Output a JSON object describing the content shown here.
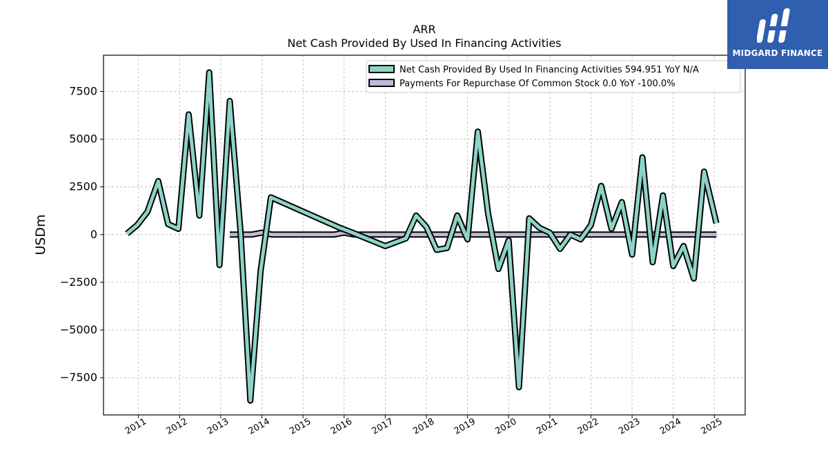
{
  "brand": {
    "name": "MIDGARD FINANCE",
    "icon": "midgard-logo-icon",
    "color": "#2f5fae"
  },
  "chart_data": {
    "type": "line",
    "title": "ARR",
    "subtitle": "Net Cash Provided By Used In Financing Activities",
    "xlabel": "",
    "ylabel": "USDm",
    "xlim": [
      2010.15,
      2025.75
    ],
    "ylim": [
      -9450,
      9400
    ],
    "x_ticks": [
      2011,
      2012,
      2013,
      2014,
      2015,
      2016,
      2017,
      2018,
      2019,
      2020,
      2021,
      2022,
      2023,
      2024,
      2025
    ],
    "y_ticks": [
      -7500,
      -5000,
      -2500,
      0,
      2500,
      5000,
      7500
    ],
    "y_tick_labels": [
      "−7500",
      "−5000",
      "−2500",
      "0",
      "2500",
      "5000",
      "7500"
    ],
    "grid": true,
    "legend_position": "top-right",
    "series": [
      {
        "name": "Net Cash Provided By Used In Financing Activities  594.951 YoY N/A",
        "color": "#8dd3c7",
        "points": [
          [
            2010.72,
            50
          ],
          [
            2010.97,
            500
          ],
          [
            2011.22,
            1200
          ],
          [
            2011.48,
            2800
          ],
          [
            2011.72,
            550
          ],
          [
            2011.97,
            300
          ],
          [
            2012.22,
            6300
          ],
          [
            2012.48,
            1000
          ],
          [
            2012.72,
            8500
          ],
          [
            2012.97,
            -1600
          ],
          [
            2013.22,
            7000
          ],
          [
            2013.48,
            200
          ],
          [
            2013.72,
            -8700
          ],
          [
            2013.97,
            -1900
          ],
          [
            2014.22,
            1950
          ],
          [
            2015.9,
            350
          ],
          [
            2016.2,
            100
          ],
          [
            2017.0,
            -600
          ],
          [
            2017.5,
            -200
          ],
          [
            2017.75,
            1000
          ],
          [
            2018.0,
            400
          ],
          [
            2018.25,
            -800
          ],
          [
            2018.5,
            -700
          ],
          [
            2018.75,
            1000
          ],
          [
            2019.0,
            -250
          ],
          [
            2019.25,
            5400
          ],
          [
            2019.5,
            1100
          ],
          [
            2019.75,
            -1800
          ],
          [
            2020.0,
            -300
          ],
          [
            2020.25,
            -8000
          ],
          [
            2020.5,
            850
          ],
          [
            2020.75,
            350
          ],
          [
            2021.0,
            100
          ],
          [
            2021.25,
            -750
          ],
          [
            2021.5,
            0
          ],
          [
            2021.75,
            -250
          ],
          [
            2022.0,
            500
          ],
          [
            2022.25,
            2550
          ],
          [
            2022.5,
            300
          ],
          [
            2022.75,
            1700
          ],
          [
            2023.0,
            -1050
          ],
          [
            2023.25,
            4050
          ],
          [
            2023.5,
            -1450
          ],
          [
            2023.75,
            2050
          ],
          [
            2024.0,
            -1650
          ],
          [
            2024.25,
            -600
          ],
          [
            2024.5,
            -2300
          ],
          [
            2024.75,
            3300
          ],
          [
            2025.05,
            595
          ]
        ]
      },
      {
        "name": "Payments For Repurchase Of Common Stock  0.0 YoY -100.0%",
        "color": "#bebada",
        "points": [
          [
            2013.22,
            0
          ],
          [
            2013.5,
            0
          ],
          [
            2013.75,
            0
          ],
          [
            2014.0,
            100
          ],
          [
            2014.25,
            0
          ],
          [
            2015.75,
            0
          ],
          [
            2016.0,
            100
          ],
          [
            2016.25,
            0
          ],
          [
            2017.0,
            0
          ],
          [
            2020.0,
            0
          ],
          [
            2025.05,
            0
          ]
        ]
      }
    ]
  }
}
